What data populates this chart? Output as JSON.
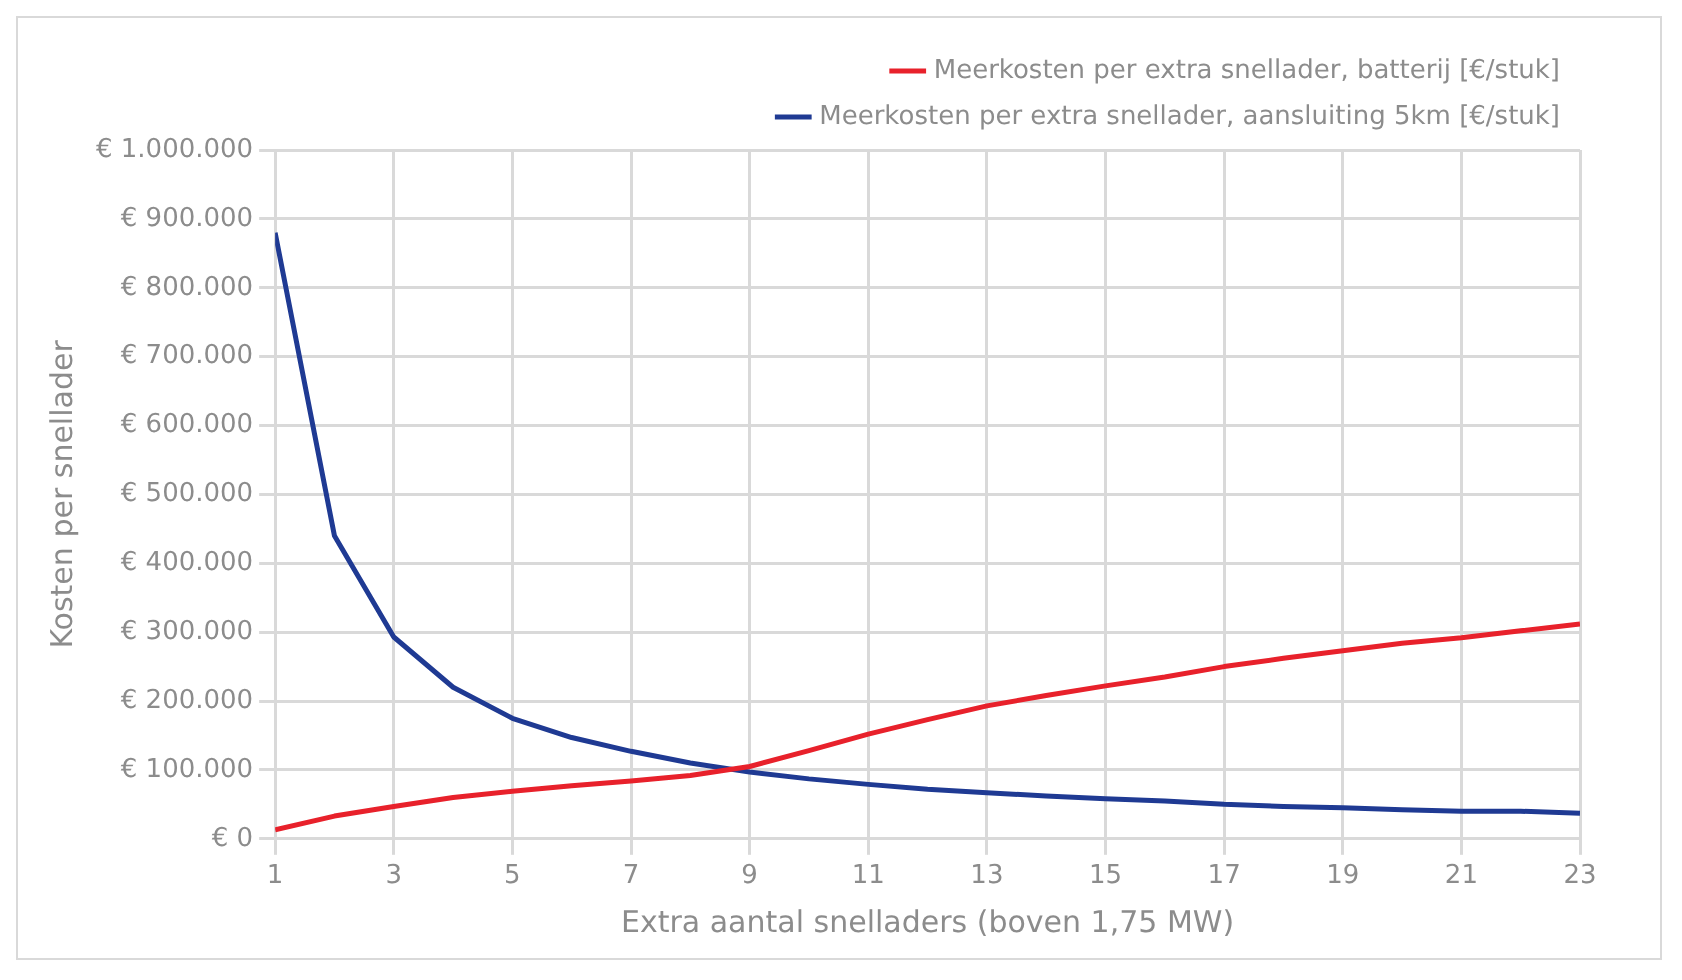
{
  "chart_data": {
    "type": "line",
    "xlabel": "Extra aantal snelladers (boven 1,75 MW)",
    "ylabel": "Kosten per snellader",
    "x": [
      1,
      2,
      3,
      4,
      5,
      6,
      7,
      8,
      9,
      10,
      11,
      12,
      13,
      14,
      15,
      16,
      17,
      18,
      19,
      20,
      21,
      22,
      23
    ],
    "series": [
      {
        "name": "Meerkosten per extra snellader, batterij [€/stuk]",
        "color": "#e8212b",
        "values": [
          13000,
          33000,
          47000,
          60000,
          69000,
          77000,
          84000,
          92000,
          105000,
          128000,
          152000,
          173000,
          193000,
          208000,
          222000,
          235000,
          250000,
          262000,
          273000,
          284000,
          292000,
          302000,
          312000
        ]
      },
      {
        "name": "Meerkosten per extra snellader, aansluiting 5km [€/stuk]",
        "color": "#1f3a93",
        "values": [
          880000,
          440000,
          293000,
          220000,
          175000,
          147000,
          127000,
          110000,
          97000,
          87000,
          79000,
          72000,
          67000,
          62000,
          58000,
          55000,
          50000,
          47000,
          45000,
          42000,
          40000,
          40000,
          37000
        ]
      }
    ],
    "xlim": [
      1,
      23
    ],
    "xticks": [
      1,
      3,
      5,
      7,
      9,
      11,
      13,
      15,
      17,
      19,
      21,
      23
    ],
    "ylim": [
      0,
      1000000
    ],
    "yticks": [
      {
        "value": 0,
        "label": "€ 0"
      },
      {
        "value": 100000,
        "label": "€ 100.000"
      },
      {
        "value": 200000,
        "label": "€ 200.000"
      },
      {
        "value": 300000,
        "label": "€ 300.000"
      },
      {
        "value": 400000,
        "label": "€ 400.000"
      },
      {
        "value": 500000,
        "label": "€ 500.000"
      },
      {
        "value": 600000,
        "label": "€ 600.000"
      },
      {
        "value": 700000,
        "label": "€ 700.000"
      },
      {
        "value": 800000,
        "label": "€ 800.000"
      },
      {
        "value": 900000,
        "label": "€ 900.000"
      },
      {
        "value": 1000000,
        "label": "€ 1.000.000"
      }
    ],
    "grid": true,
    "legend": "top right",
    "marker": "none",
    "line_style": "solid"
  }
}
